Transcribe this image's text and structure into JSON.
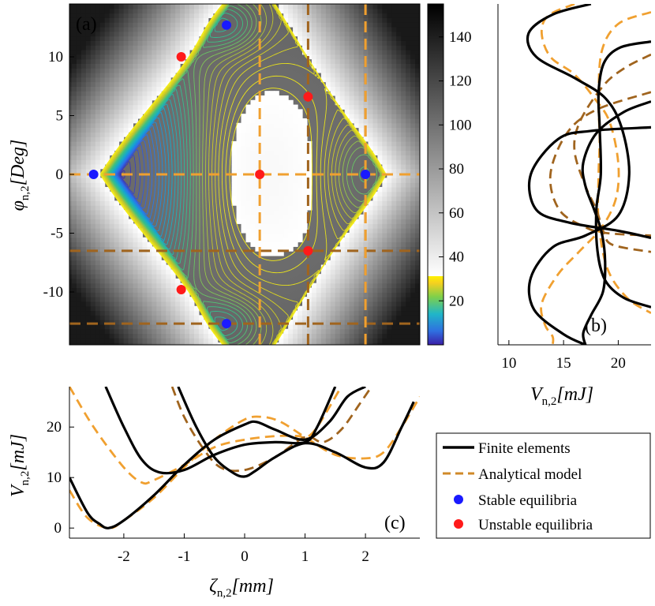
{
  "chart_data": [
    {
      "type": "heatmap",
      "panel_label": "(a)",
      "description_kind": "contour potential energy map",
      "xlim": [
        -2.9,
        2.9
      ],
      "ylim": [
        -14.5,
        14.5
      ],
      "yticks": [
        -10,
        -5,
        0,
        5,
        10
      ],
      "yticklabels": [
        "-10",
        "-5",
        "0",
        "5",
        "10"
      ],
      "ylabel": "φ",
      "ylabel_sub": "n,2",
      "ylabel_unit": "[Deg]",
      "colorbar": {
        "range": [
          0,
          155
        ],
        "ticks": [
          20,
          40,
          60,
          80,
          100,
          120,
          140
        ],
        "ticklabels": [
          "20",
          "40",
          "60",
          "80",
          "100",
          "120",
          "140"
        ],
        "contour_max": 30
      },
      "stable_points": [
        [
          -2.5,
          0
        ],
        [
          -0.3,
          12.7
        ],
        [
          -0.3,
          -12.7
        ],
        [
          2.0,
          0
        ]
      ],
      "unstable_points": [
        [
          -1.05,
          10.0
        ],
        [
          -1.05,
          -9.8
        ],
        [
          0.25,
          0
        ],
        [
          1.05,
          6.6
        ],
        [
          1.05,
          -6.5
        ]
      ],
      "dashed_light_h": [
        0
      ],
      "dashed_light_v": [
        0.25,
        2.0
      ],
      "dashed_dark_h": [
        -6.5,
        -12.7
      ],
      "dashed_dark_v": [
        1.05,
        2.0
      ],
      "colors": {
        "stable": "#1a1aff",
        "unstable": "#ff1a1a",
        "light_dash": "#f0a030",
        "dark_dash": "#a0641e"
      }
    },
    {
      "type": "line",
      "panel_label": "(b)",
      "xlim": [
        9,
        23
      ],
      "ylim": [
        -14.5,
        14.5
      ],
      "xticks": [
        10,
        15,
        20
      ],
      "xticklabels": [
        "10",
        "15",
        "20"
      ],
      "xlabel": "V",
      "xlabel_sub": "n,2",
      "xlabel_unit": "[mJ]",
      "series": [
        {
          "name": "Finite elements a",
          "style": "solid-black",
          "x": [
            17.5,
            14.0,
            11.8,
            12.5,
            16.0,
            18.8,
            20.3,
            21.0,
            20.0,
            17.0,
            14.0,
            12.0,
            12.3,
            15.0,
            17.0
          ],
          "y": [
            14.5,
            13.6,
            12.0,
            10.0,
            8.2,
            6.5,
            4.0,
            0,
            -3.5,
            -5.2,
            -6.2,
            -8.8,
            -11.5,
            -13.6,
            -14.5
          ]
        },
        {
          "name": "Finite elements b",
          "style": "solid-black",
          "x": [
            23,
            20.2,
            18.7,
            18.2,
            18.3,
            18.4,
            18.0,
            18.1,
            18.8,
            20.5,
            23
          ],
          "y": [
            11.3,
            10.8,
            9.5,
            7.0,
            4.0,
            0,
            -3.0,
            -6.5,
            -9.0,
            -10.5,
            -11.3
          ]
        },
        {
          "name": "Finite elements c",
          "style": "solid-black",
          "x": [
            23,
            20.5,
            18.0,
            16.8,
            17.0,
            17.8,
            18.5,
            18.8,
            18.6,
            17.5,
            16.8,
            17.0
          ],
          "y": [
            6.2,
            5.3,
            3.5,
            1.0,
            -1.0,
            -3.0,
            -5.0,
            -7.5,
            -10.0,
            -12.0,
            -13.5,
            -14.5
          ]
        },
        {
          "name": "Finite elements d",
          "style": "solid-black",
          "x": [
            23,
            17.5,
            14.5,
            12.0,
            12.5,
            15.5,
            20.0,
            23
          ],
          "y": [
            4.0,
            3.7,
            3.0,
            0,
            -3.0,
            -4.1,
            -4.8,
            -5.4
          ]
        },
        {
          "name": "Analytical model a",
          "style": "dash-light",
          "x": [
            16.0,
            13.6,
            13.0,
            13.8,
            16.0,
            17.8,
            19.2,
            20.0,
            19.8,
            18.5,
            16.5,
            14.5,
            13.0,
            13.3,
            14.0,
            14.0
          ],
          "y": [
            14.5,
            13.5,
            12.0,
            10.0,
            8.5,
            6.5,
            4.5,
            1.0,
            -2.0,
            -4.5,
            -6.5,
            -8.5,
            -11.0,
            -12.8,
            -13.8,
            -14.5
          ]
        },
        {
          "name": "Analytical model b",
          "style": "dash-light",
          "x": [
            23,
            20.0,
            18.5,
            18.2,
            18.3,
            18.2,
            18.2,
            19.0,
            20.8,
            23
          ],
          "y": [
            13.8,
            12.8,
            10.5,
            6.5,
            3.0,
            0,
            -4.0,
            -8.0,
            -10.5,
            -11.8
          ]
        },
        {
          "name": "Analytical model c",
          "style": "dash-dark",
          "x": [
            23,
            20.5,
            18.6,
            16.5,
            16.0,
            17.0,
            18.0,
            18.7,
            19.5,
            23
          ],
          "y": [
            10.2,
            9.0,
            7.5,
            4.5,
            2.0,
            -1.0,
            -3.0,
            -5.0,
            -6.0,
            -6.6
          ]
        },
        {
          "name": "Analytical model d",
          "style": "dash-dark",
          "x": [
            23,
            18.0,
            15.3,
            13.8,
            14.6,
            17.0,
            19.0,
            23
          ],
          "y": [
            7.0,
            5.5,
            3.5,
            0,
            -3.0,
            -4.5,
            -5.0,
            -5.2
          ]
        }
      ]
    },
    {
      "type": "line",
      "panel_label": "(c)",
      "xlim": [
        -2.9,
        2.9
      ],
      "ylim": [
        -2,
        28
      ],
      "xticks": [
        -2,
        -1,
        0,
        1,
        2
      ],
      "xticklabels": [
        "-2",
        "-1",
        "0",
        "1",
        "2"
      ],
      "yticks": [
        0,
        10,
        20
      ],
      "yticklabels": [
        "0",
        "10",
        "20"
      ],
      "xlabel": "ζ",
      "xlabel_sub": "n,2",
      "xlabel_unit": "[mm]",
      "ylabel": "V",
      "ylabel_sub": "n,2",
      "ylabel_unit": "[mJ]",
      "series": [
        {
          "name": "Finite elements a",
          "style": "solid-black",
          "x": [
            -2.9,
            -2.6,
            -2.4,
            -2.25,
            -2.0,
            -1.5,
            -1.0,
            -0.5,
            0.0,
            0.2,
            0.5,
            1.0,
            1.4,
            1.7,
            2.0
          ],
          "y": [
            10.0,
            3.0,
            0.8,
            0.0,
            1.5,
            6.5,
            12.5,
            17.5,
            20.5,
            21.0,
            19.5,
            17.5,
            21.0,
            26.0,
            28.0
          ]
        },
        {
          "name": "Finite elements b",
          "style": "solid-black",
          "x": [
            -2.3,
            -2.0,
            -1.7,
            -1.4,
            -1.0,
            -0.5,
            0.0,
            0.5,
            1.0,
            1.2,
            1.5
          ],
          "y": [
            28.0,
            20.0,
            13.5,
            11.0,
            11.5,
            14.5,
            16.5,
            17.0,
            17.0,
            20.0,
            28.0
          ]
        },
        {
          "name": "Finite elements c",
          "style": "solid-black",
          "x": [
            -1.1,
            -0.8,
            -0.5,
            -0.2,
            0.0,
            0.2,
            0.5,
            1.0,
            1.5,
            2.0,
            2.3,
            2.6,
            2.8
          ],
          "y": [
            28.0,
            20.0,
            14.0,
            11.0,
            10.2,
            11.5,
            14.0,
            16.8,
            15.0,
            12.0,
            13.0,
            20.0,
            25.0
          ]
        },
        {
          "name": "Analytical model a",
          "style": "dash-light",
          "x": [
            -2.9,
            -2.6,
            -2.25,
            -2.0,
            -1.5,
            -1.0,
            -0.5,
            0.0,
            0.3,
            0.6,
            1.0,
            1.5,
            2.0,
            2.3,
            2.6,
            2.9
          ],
          "y": [
            7.5,
            2.0,
            0.0,
            1.5,
            6.0,
            12.0,
            17.5,
            21.5,
            22.0,
            21.0,
            18.0,
            14.5,
            13.8,
            15.0,
            20.0,
            26.0
          ]
        },
        {
          "name": "Analytical model b",
          "style": "dash-light",
          "x": [
            -2.9,
            -2.5,
            -2.0,
            -1.7,
            -1.5,
            -1.0,
            -0.5,
            0.0,
            0.5,
            0.9,
            1.0,
            1.2,
            1.6
          ],
          "y": [
            28.0,
            20.0,
            12.0,
            9.0,
            9.5,
            12.5,
            16.0,
            17.5,
            18.2,
            18.2,
            17.8,
            20.0,
            28.0
          ]
        },
        {
          "name": "Analytical model c",
          "style": "dash-dark",
          "x": [
            -1.2,
            -1.0,
            -0.7,
            -0.4,
            0.0,
            0.5,
            1.0,
            1.3,
            1.6,
            1.9,
            2.1
          ],
          "y": [
            28.0,
            22.0,
            16.0,
            12.0,
            11.5,
            14.0,
            18.0,
            17.0,
            19.5,
            24.5,
            28.0
          ]
        }
      ]
    }
  ],
  "legend": {
    "items": [
      {
        "label": "Finite elements",
        "kind": "solid",
        "color": "#000000"
      },
      {
        "label": "Analytical model",
        "kind": "dash",
        "color": "#d08a28"
      },
      {
        "label": "Stable equilibria",
        "kind": "dot",
        "color": "#1a1aff"
      },
      {
        "label": "Unstable equilibria",
        "kind": "dot",
        "color": "#ff1a1a"
      }
    ]
  }
}
